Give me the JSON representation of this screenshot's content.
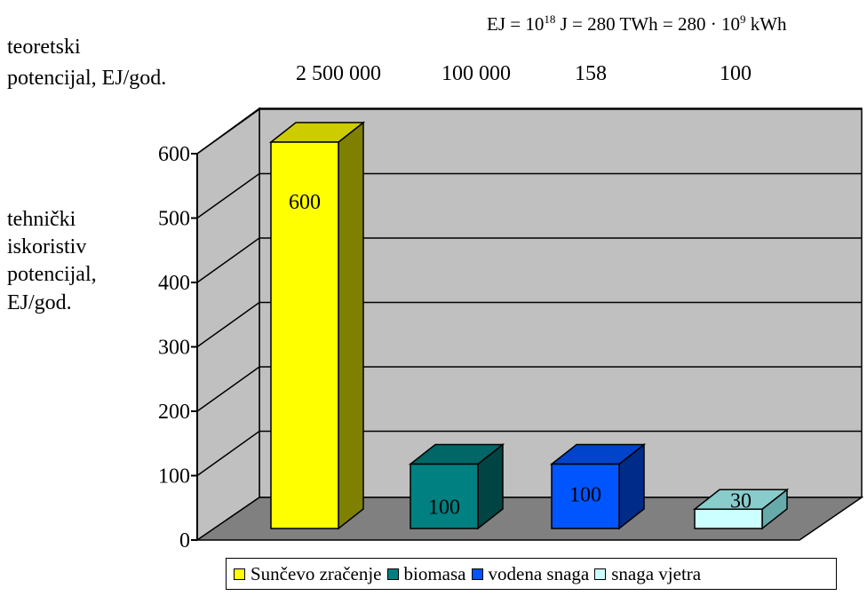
{
  "unit_note": {
    "prefix": "EJ = 10",
    "exp1": "18",
    "middle": " J = 280 TWh = 280 · 10",
    "exp2": "9",
    "suffix": " kWh"
  },
  "theoretical_label": [
    "teoretski",
    "potencijal, EJ/god."
  ],
  "technical_label": [
    "tehnički",
    "iskoristiv",
    "potencijal,",
    "EJ/god."
  ],
  "chart_data": {
    "type": "bar",
    "categories": [
      "Sunčevo zračenje",
      "biomasa",
      "vodena snaga",
      "snaga vjetra"
    ],
    "values": [
      600,
      100,
      100,
      30
    ],
    "data_labels": [
      "600",
      "100",
      "100",
      "30"
    ],
    "theoretical_potential": [
      "2 500 000",
      "100 000",
      "158",
      "100"
    ],
    "ylim": [
      0,
      600
    ],
    "yticks": [
      "0",
      "100",
      "200",
      "300",
      "400",
      "500",
      "600"
    ],
    "grid": true,
    "legend_position": "bottom",
    "colors": {
      "Sunčevo zračenje": {
        "front": "#ffff00",
        "top": "#cccc00",
        "side": "#808000"
      },
      "biomasa": {
        "front": "#008080",
        "top": "#006666",
        "side": "#004444"
      },
      "vodena snaga": {
        "front": "#0055ff",
        "top": "#0044cc",
        "side": "#002b88"
      },
      "snaga vjetra": {
        "front": "#ccffff",
        "top": "#88cccc",
        "side": "#66aaaa"
      }
    },
    "wall_color": "#c0c0c0",
    "floor_color": "#808080"
  }
}
